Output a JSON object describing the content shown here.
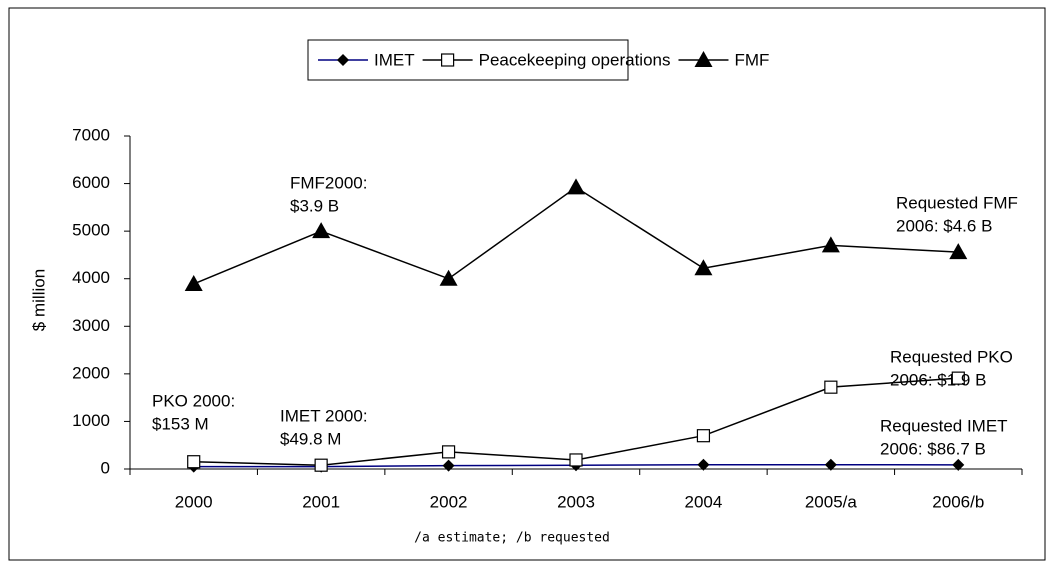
{
  "chart_data": {
    "type": "line",
    "ylabel": "$ million",
    "footnote": "/a estimate; /b requested",
    "categories": [
      "2000",
      "2001",
      "2002",
      "2003",
      "2004",
      "2005/a",
      "2006/b"
    ],
    "series": [
      {
        "name": "IMET",
        "color": "#000080",
        "marker": "diamond",
        "values": [
          50,
          50,
          70,
          80,
          90,
          90,
          87
        ]
      },
      {
        "name": "Peacekeeping operations",
        "color": "#000000",
        "marker": "square",
        "values": [
          153,
          80,
          360,
          190,
          700,
          1720,
          1910
        ]
      },
      {
        "name": "FMF",
        "color": "#000000",
        "marker": "triangle",
        "values": [
          3890,
          5000,
          4000,
          5920,
          4220,
          4700,
          4560
        ]
      }
    ],
    "ylim": [
      0,
      7000
    ],
    "yticks": [
      0,
      1000,
      2000,
      3000,
      4000,
      5000,
      6000,
      7000
    ],
    "legend": "top",
    "annotations": [
      {
        "lines": [
          "PKO 2000:",
          "$153 M"
        ]
      },
      {
        "lines": [
          "IMET 2000:",
          "$49.8 M"
        ]
      },
      {
        "lines": [
          "FMF2000:",
          "$3.9 B"
        ]
      },
      {
        "lines": [
          "Requested FMF",
          "2006: $4.6 B"
        ]
      },
      {
        "lines": [
          "Requested PKO",
          "2006: $1.9 B"
        ]
      },
      {
        "lines": [
          "Requested IMET",
          "2006: $86.7 B"
        ]
      }
    ]
  }
}
